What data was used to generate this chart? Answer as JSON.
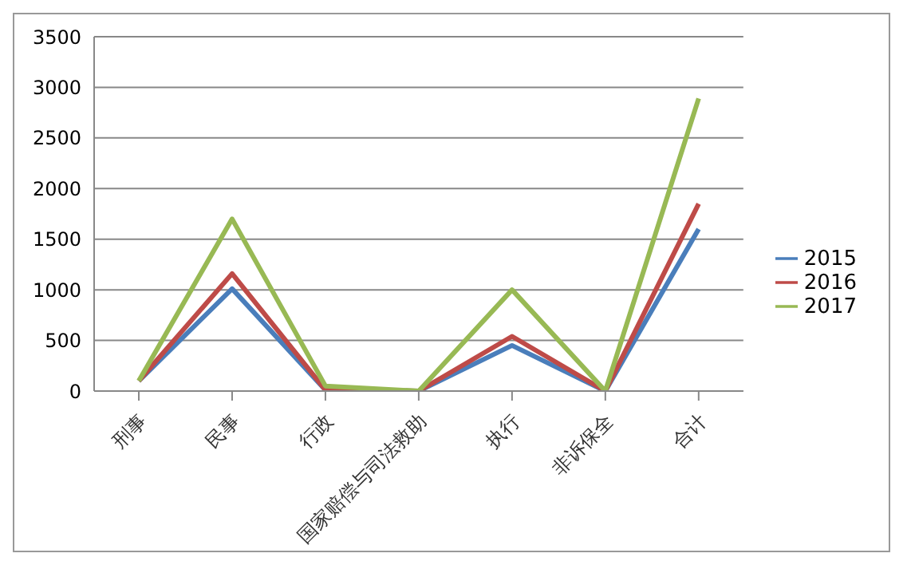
{
  "chart_data": {
    "type": "line",
    "categories": [
      "刑事",
      "民事",
      "行政",
      "国家赔偿与司法救助",
      "执行",
      "非诉保全",
      "合计"
    ],
    "series": [
      {
        "name": "2015",
        "color": "#4a7ebb",
        "values": [
          100,
          1010,
          10,
          0,
          450,
          0,
          1600
        ]
      },
      {
        "name": "2016",
        "color": "#be4b48",
        "values": [
          100,
          1160,
          10,
          0,
          540,
          0,
          1850
        ]
      },
      {
        "name": "2017",
        "color": "#98b954",
        "values": [
          100,
          1700,
          50,
          0,
          1000,
          0,
          2890
        ]
      }
    ],
    "ylim": [
      0,
      3500
    ],
    "yticks": [
      0,
      500,
      1000,
      1500,
      2000,
      2500,
      3000,
      3500
    ],
    "grid": "y",
    "legend": "right",
    "marker": "none",
    "line_style": "solid"
  }
}
